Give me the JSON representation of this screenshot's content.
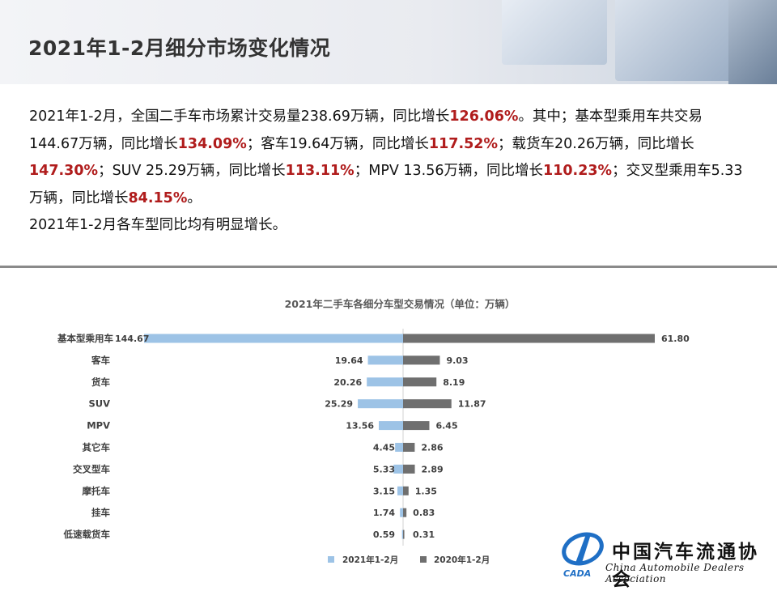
{
  "header": {
    "title": "2021年1-2月细分市场变化情况"
  },
  "paragraph": {
    "p1": "2021年1-2月，全国二手车市场累计交易量238.69万辆，同比增长",
    "h1": "126.06%",
    "p2": "。其中；基本型乘用车共交易144.67万辆，同比增长",
    "h2": "134.09%",
    "p3": "；客车19.64万辆，同比增长",
    "h3": "117.52%",
    "p4": "；载货车20.26万辆，同比增长",
    "h4": "147.30%",
    "p5": "；SUV 25.29万辆，同比增长",
    "h5": "113.11%",
    "p6": "；MPV 13.56万辆，同比增长",
    "h6": "110.23%",
    "p7": "；交叉型乘用车5.33万辆，同比增长",
    "h7": "84.15%",
    "p8": "。",
    "line2": "2021年1-2月各车型同比均有明显增长。"
  },
  "colors": {
    "highlight": "#b01c1c",
    "series_2021": "#9dc3e6",
    "series_2020": "#6f6f6f"
  },
  "chart_data": {
    "type": "bar",
    "orientation": "horizontal-diverging",
    "title": "2021年二手车各细分车型交易情况（单位：万辆）",
    "categories": [
      "基本型乘用车",
      "客车",
      "货车",
      "SUV",
      "MPV",
      "其它车",
      "交叉型车",
      "摩托车",
      "挂车",
      "低速载货车"
    ],
    "series": [
      {
        "name": "2021年1-2月",
        "values": [
          144.67,
          19.64,
          20.26,
          25.29,
          13.56,
          4.45,
          5.33,
          3.15,
          1.74,
          0.59
        ],
        "labels": [
          "144.67",
          "19.64",
          "20.26",
          "25.29",
          "13.56",
          "4.45",
          "5.33",
          "3.15",
          "1.74",
          "0.59"
        ],
        "color": "#9dc3e6",
        "direction": "left"
      },
      {
        "name": "2020年1-2月",
        "values": [
          61.8,
          9.03,
          8.19,
          11.87,
          6.45,
          2.86,
          2.89,
          1.35,
          0.83,
          0.31
        ],
        "labels": [
          "61.80",
          "9.03",
          "8.19",
          "11.87",
          "6.45",
          "2.86",
          "2.89",
          "1.35",
          "0.83",
          "0.31"
        ],
        "color": "#6f6f6f",
        "direction": "right"
      }
    ],
    "legend": "bottom",
    "grid": false
  },
  "logo": {
    "cn": "中国汽车流通协会",
    "en": "China Automobile Dealers Association",
    "mark": "CADA"
  }
}
